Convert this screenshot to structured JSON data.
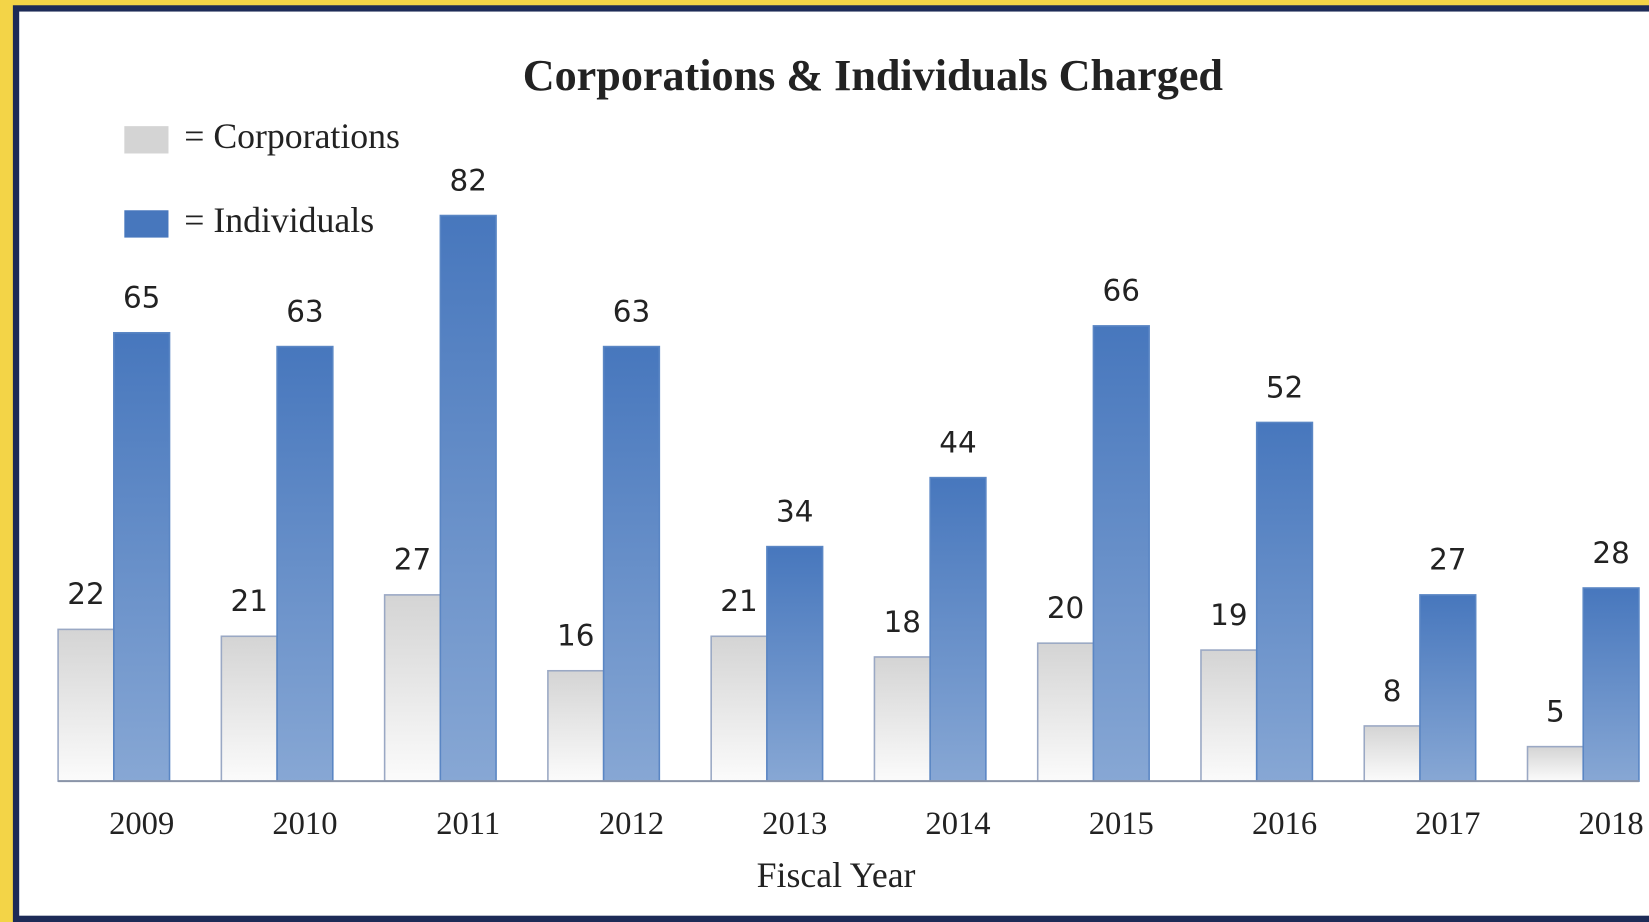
{
  "chart_data": {
    "type": "bar",
    "title": "Corporations & Individuals Charged",
    "x_label": "Fiscal Year",
    "categories": [
      "2009",
      "2010",
      "2011",
      "2012",
      "2013",
      "2014",
      "2015",
      "2016",
      "2017",
      "2018"
    ],
    "series": [
      {
        "name": "= Corporations",
        "color": "#d4d4d4",
        "values": [
          22,
          21,
          27,
          16,
          21,
          18,
          20,
          19,
          8,
          5
        ]
      },
      {
        "name": "= Individuals",
        "color": "#4777bd",
        "values": [
          65,
          63,
          82,
          63,
          34,
          44,
          66,
          52,
          27,
          28
        ]
      }
    ],
    "ylim": [
      0,
      82
    ]
  }
}
